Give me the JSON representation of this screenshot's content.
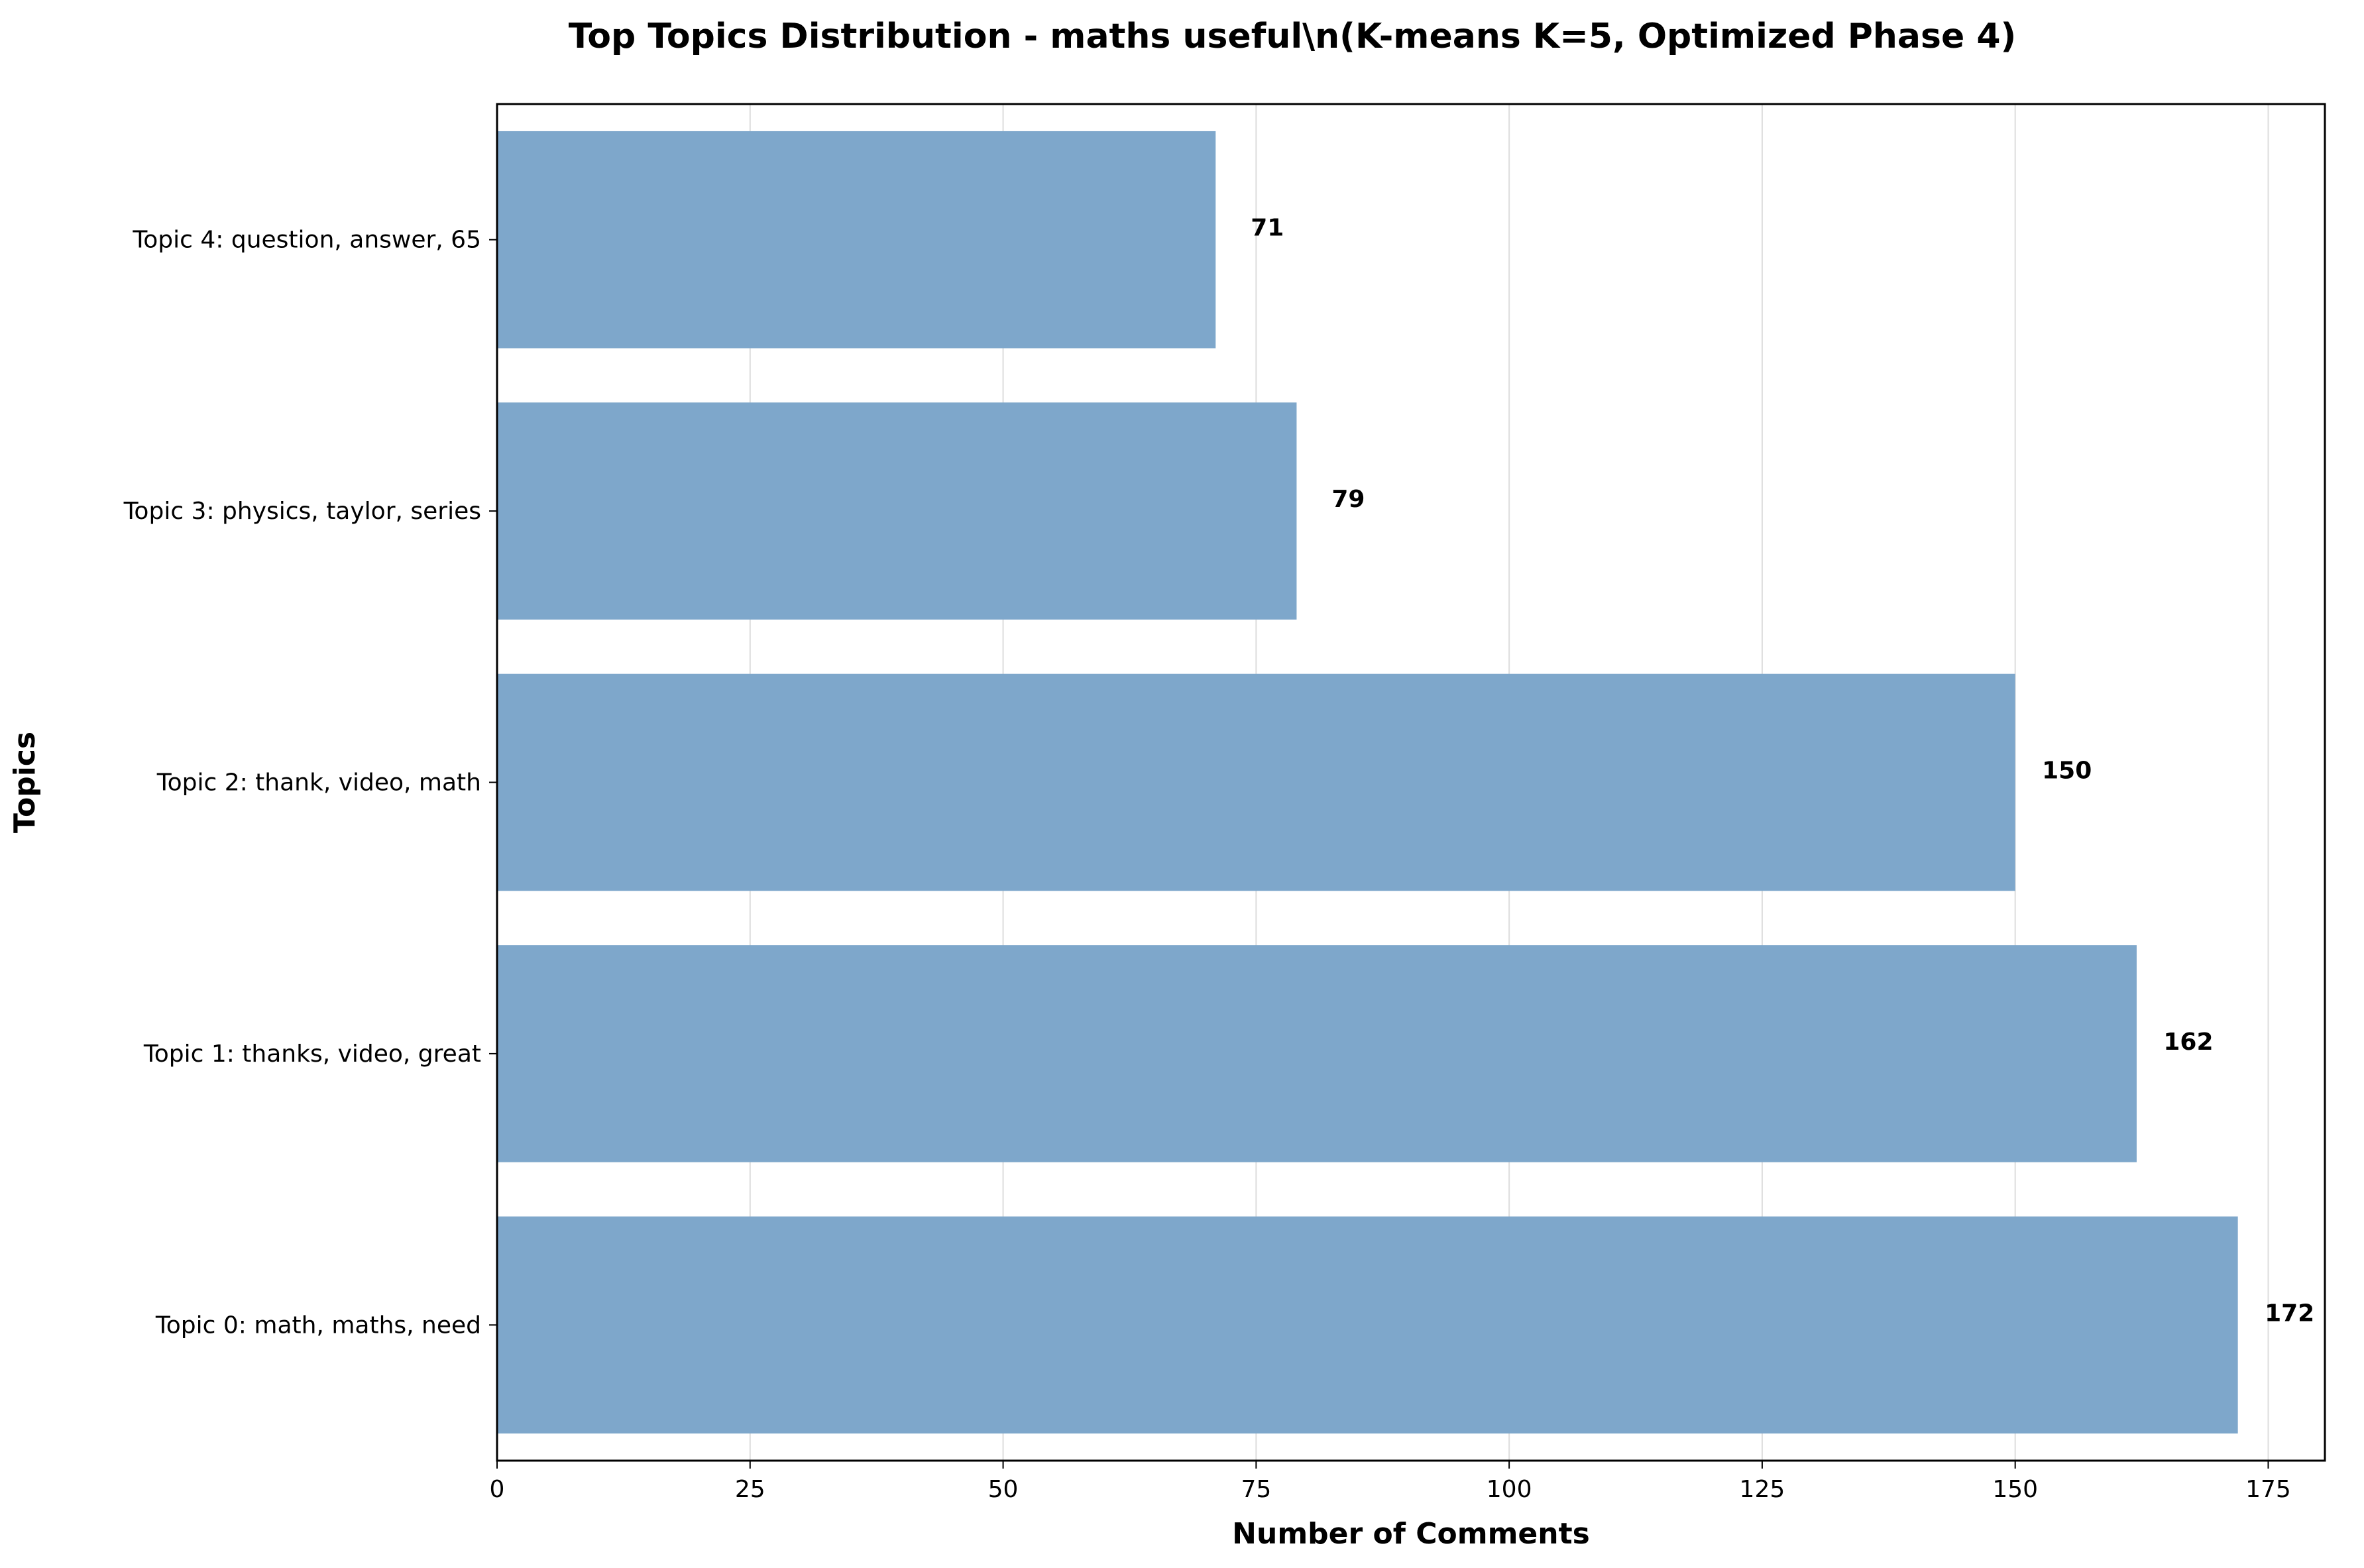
{
  "chart_data": {
    "type": "bar",
    "orientation": "horizontal",
    "title": "Top Topics Distribution - maths useful\\n(K-means K=5, Optimized Phase 4)",
    "xlabel": "Number of Comments",
    "ylabel": "Topics",
    "categories": [
      "Topic 0: math, maths, need",
      "Topic 1: thanks, video, great",
      "Topic 2: thank, video, math",
      "Topic 3: physics, taylor, series",
      "Topic 4: question, answer, 65"
    ],
    "values": [
      172,
      162,
      150,
      79,
      71
    ],
    "xlim": [
      0,
      180.6
    ],
    "xticks": [
      0,
      25,
      50,
      75,
      100,
      125,
      150,
      175
    ],
    "grid": "vertical",
    "bar_color": "#7ea7cb",
    "legend": "none"
  }
}
